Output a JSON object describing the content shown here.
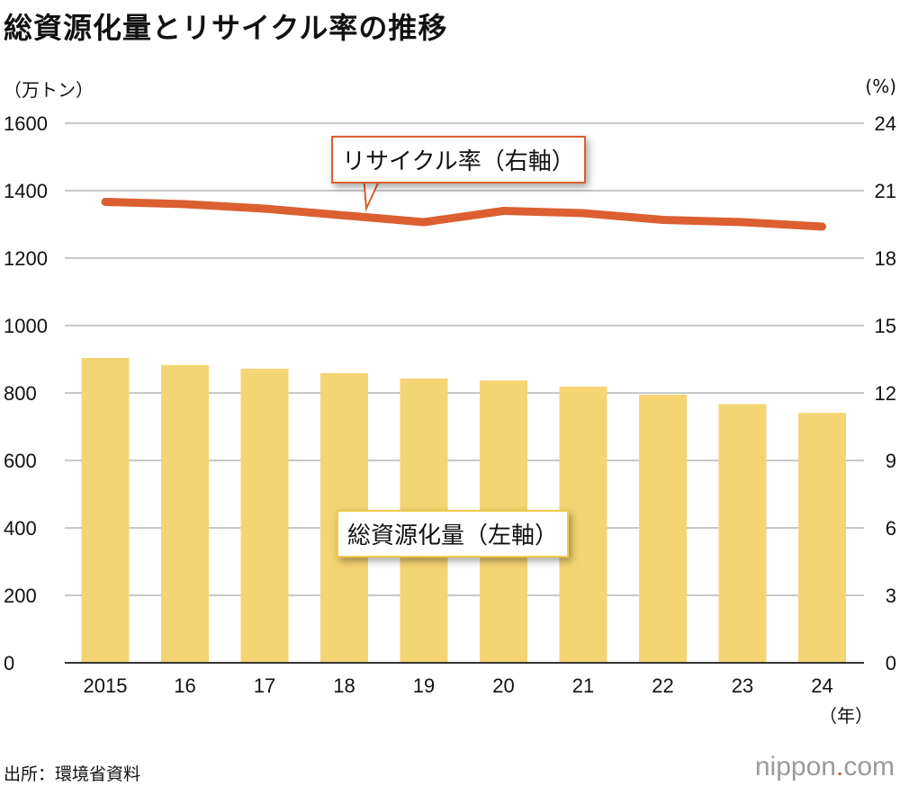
{
  "chart_data": {
    "type": "bar+line",
    "title": "総資源化量とリサイクル率の推移",
    "left_unit": "（万トン）",
    "right_unit": "(%)",
    "x_unit": "（年）",
    "categories": [
      "2015",
      "16",
      "17",
      "18",
      "19",
      "20",
      "21",
      "22",
      "23",
      "24"
    ],
    "left_axis": {
      "range": [
        0,
        1600
      ],
      "ticks": [
        "0",
        "200",
        "400",
        "600",
        "800",
        "1000",
        "1200",
        "1400",
        "1600"
      ]
    },
    "right_axis": {
      "range": [
        0,
        24
      ],
      "ticks": [
        "0",
        "3",
        "6",
        "9",
        "12",
        "15",
        "18",
        "21",
        "24"
      ]
    },
    "series": [
      {
        "name": "総資源化量（左軸）",
        "type": "bar",
        "axis": "left",
        "color": "#f5d473",
        "values": [
          904,
          883,
          872,
          859,
          843,
          837,
          819,
          795,
          767,
          741
        ]
      },
      {
        "name": "リサイクル率（右軸）",
        "type": "line",
        "axis": "right",
        "color": "#db5f30",
        "values": [
          20.5,
          20.4,
          20.2,
          19.9,
          19.6,
          20.1,
          20.0,
          19.7,
          19.6,
          19.4
        ]
      }
    ],
    "grid": true
  },
  "source": "出所：環境省資料",
  "logo": {
    "name": "nippon",
    "dot": ".",
    "tld": "com"
  }
}
